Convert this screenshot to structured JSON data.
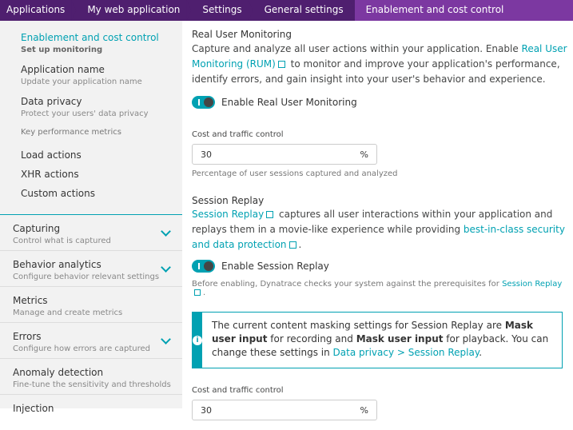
{
  "breadcrumb": [
    "Applications",
    "My web application",
    "Settings",
    "General settings",
    "Enablement and cost control"
  ],
  "sidebar": {
    "active": {
      "title": "Enablement and cost control",
      "sub": "Set up monitoring"
    },
    "items": [
      {
        "title": "Application name",
        "sub": "Update your application name"
      },
      {
        "title": "Data privacy",
        "sub": "Protect your users' data privacy"
      }
    ],
    "kpm_heading": "Key performance metrics",
    "kpm_items": [
      "Load actions",
      "XHR actions",
      "Custom actions"
    ],
    "groups": [
      {
        "title": "Capturing",
        "sub": "Control what is captured",
        "expandable": true
      },
      {
        "title": "Behavior analytics",
        "sub": "Configure behavior relevant settings",
        "expandable": true
      },
      {
        "title": "Metrics",
        "sub": "Manage and create metrics",
        "expandable": false
      },
      {
        "title": "Errors",
        "sub": "Configure how errors are captured",
        "expandable": true
      },
      {
        "title": "Anomaly detection",
        "sub": "Fine-tune the sensitivity and thresholds",
        "expandable": false
      },
      {
        "title": "Injection",
        "sub": "",
        "expandable": false
      }
    ]
  },
  "rum": {
    "title": "Real User Monitoring",
    "desc_1": "Capture and analyze all user actions within your application. Enable ",
    "link": "Real User Monitoring (RUM)",
    "desc_2": " to monitor and improve your application's performance, identify errors, and gain insight into your user's behavior and experience.",
    "toggle_label": "Enable Real User Monitoring",
    "toggle_on": true,
    "cost_label": "Cost and traffic control",
    "cost_value": "30",
    "unit": "%",
    "cost_hint": "Percentage of user sessions captured and analyzed"
  },
  "sr": {
    "title": "Session Replay",
    "link": "Session Replay",
    "desc_1": " captures all user interactions within your application and replays them in a movie-like experience while providing ",
    "link2": "best-in-class security and data protection",
    "desc_2": ".",
    "toggle_label": "Enable Session Replay",
    "toggle_on": true,
    "hint_1": "Before enabling, Dynatrace checks your system against the prerequisites for ",
    "hint_link": "Session Replay",
    "hint_2": ".",
    "info": {
      "t1": "The current content masking settings for Session Replay are ",
      "b1": "Mask user input",
      "t2": " for recording and ",
      "b2": "Mask user input",
      "t3": " for playback. You can change these settings in ",
      "link": "Data privacy > Session Replay",
      "t4": "."
    },
    "cost_label": "Cost and traffic control",
    "cost_value": "30",
    "unit": "%"
  }
}
